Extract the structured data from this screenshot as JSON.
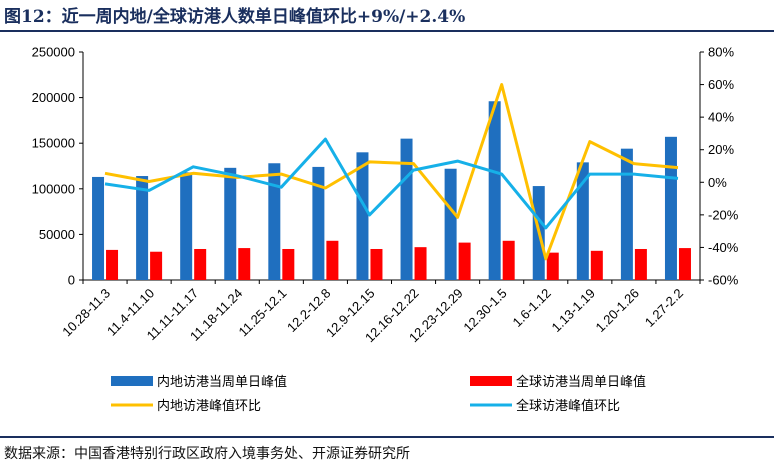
{
  "title": "图12：近一周内地/全球访港人数单日峰值环比+9%/+2.4%",
  "source": "数据来源：中国香港特别行政区政府入境事务处、开源证券研究所",
  "chart_data": {
    "type": "bar",
    "title": "图12：近一周内地/全球访港人数单日峰值环比+9%/+2.4%",
    "categories": [
      "10.28-11.3",
      "11.4-11.10",
      "11.11-11.17",
      "11.18-11.24",
      "11.25-12.1",
      "12.2-12.8",
      "12.9-12.15",
      "12.16-12.22",
      "12.23-12.29",
      "12.30-1.5",
      "1.6-1.12",
      "1.13-1.19",
      "1.20-1.26",
      "1.27-2.2"
    ],
    "left_axis": {
      "ylim": [
        0,
        250000
      ],
      "ticks": [
        "0",
        "50000",
        "100000",
        "150000",
        "200000",
        "250000"
      ]
    },
    "right_axis": {
      "ylim": [
        -60,
        80
      ],
      "ticks": [
        "-60%",
        "-40%",
        "-20%",
        "0%",
        "20%",
        "40%",
        "60%",
        "80%"
      ]
    },
    "grid": false,
    "legend_position": "bottom",
    "series": [
      {
        "name": "内地访港当周单日峰值",
        "type": "bar",
        "axis": "left",
        "color": "#1f6fbf",
        "values": [
          113000,
          114000,
          118000,
          123000,
          128000,
          124000,
          140000,
          155000,
          122000,
          196000,
          103000,
          129000,
          144000,
          157000
        ]
      },
      {
        "name": "全球访港当周单日峰值",
        "type": "bar",
        "axis": "left",
        "color": "#ff0000",
        "values": [
          33000,
          31000,
          34000,
          35000,
          34000,
          43000,
          34000,
          36000,
          41000,
          43000,
          30000,
          32000,
          34000,
          35000
        ]
      },
      {
        "name": "内地访港峰值环比",
        "type": "line",
        "axis": "right",
        "color": "#ffc000",
        "values": [
          5.5,
          0.5,
          5.5,
          3,
          5,
          -3.5,
          12.5,
          11.5,
          -21.5,
          60,
          -47,
          25,
          11.5,
          9
        ]
      },
      {
        "name": "全球访港峰值环比",
        "type": "line",
        "axis": "right",
        "color": "#16b0e8",
        "values": [
          -1,
          -5,
          9.5,
          4,
          -3,
          26.5,
          -20,
          7.5,
          13,
          5,
          -28,
          5,
          5,
          2.4
        ]
      }
    ]
  }
}
